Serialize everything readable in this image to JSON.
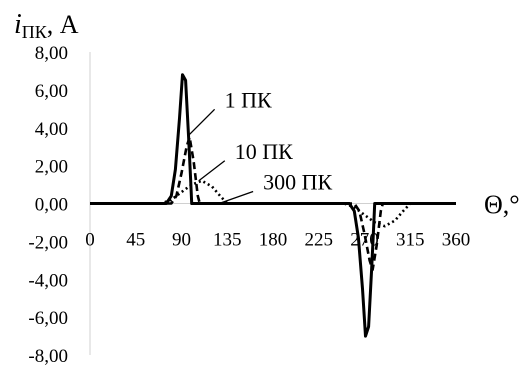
{
  "chart_data": {
    "type": "line",
    "ylabel_main": "i",
    "ylabel_sub": "ПК",
    "ylabel_unit": ", А",
    "xlabel": "Θ,°",
    "xlim": [
      0,
      360
    ],
    "ylim": [
      -8,
      8
    ],
    "x_ticks": [
      0,
      45,
      90,
      135,
      180,
      225,
      270,
      315,
      360
    ],
    "x_tick_labels": [
      "0",
      "45",
      "90",
      "135",
      "180",
      "225",
      "270",
      "315",
      "360"
    ],
    "y_ticks": [
      8,
      6,
      4,
      2,
      0,
      -2,
      -4,
      -6,
      -8
    ],
    "y_tick_labels": [
      "8,00",
      "6,00",
      "4,00",
      "2,00",
      "0,00",
      "-2,00",
      "-4,00",
      "-6,00",
      "-8,00"
    ],
    "grid": false,
    "series": [
      {
        "name": "1 ПК",
        "style": "solid",
        "x": [
          0,
          75,
          80,
          84,
          88,
          91,
          94,
          97,
          99,
          100,
          180,
          255,
          260,
          264,
          268,
          271,
          274,
          277,
          279,
          280,
          360
        ],
        "y": [
          0,
          0,
          0.4,
          1.8,
          4.5,
          6.8,
          6.5,
          3.5,
          1.2,
          0,
          0,
          0,
          -0.4,
          -1.8,
          -4.5,
          -7.0,
          -6.5,
          -3.5,
          -1.2,
          0,
          0
        ]
      },
      {
        "name": "10 ПК",
        "style": "dashed",
        "x": [
          0,
          80,
          85,
          90,
          95,
          98,
          102,
          106,
          108,
          180,
          260,
          265,
          270,
          275,
          278,
          282,
          286,
          288,
          360
        ],
        "y": [
          0,
          0,
          0.4,
          1.6,
          3.0,
          3.5,
          2.2,
          0.4,
          0,
          0,
          0,
          -0.4,
          -1.6,
          -3.0,
          -3.5,
          -2.2,
          -0.4,
          0,
          0
        ]
      },
      {
        "name": "300 ПК",
        "style": "dotted",
        "x": [
          0,
          70,
          80,
          90,
          100,
          110,
          120,
          128,
          135,
          180,
          250,
          260,
          270,
          280,
          290,
          300,
          308,
          315,
          360
        ],
        "y": [
          0,
          0,
          0.2,
          0.6,
          1.0,
          1.2,
          0.9,
          0.4,
          0,
          0,
          0,
          -0.2,
          -0.6,
          -1.0,
          -1.2,
          -0.9,
          -0.4,
          0,
          0
        ]
      }
    ],
    "annotations": [
      {
        "text": "1 ПК",
        "series": 0,
        "point_x": 97,
        "point_y": 3.6
      },
      {
        "text": "10 ПК",
        "series": 1,
        "point_x": 107,
        "point_y": 1.2
      },
      {
        "text": "300 ПК",
        "series": 2,
        "point_x": 127,
        "point_y": 0
      }
    ]
  }
}
